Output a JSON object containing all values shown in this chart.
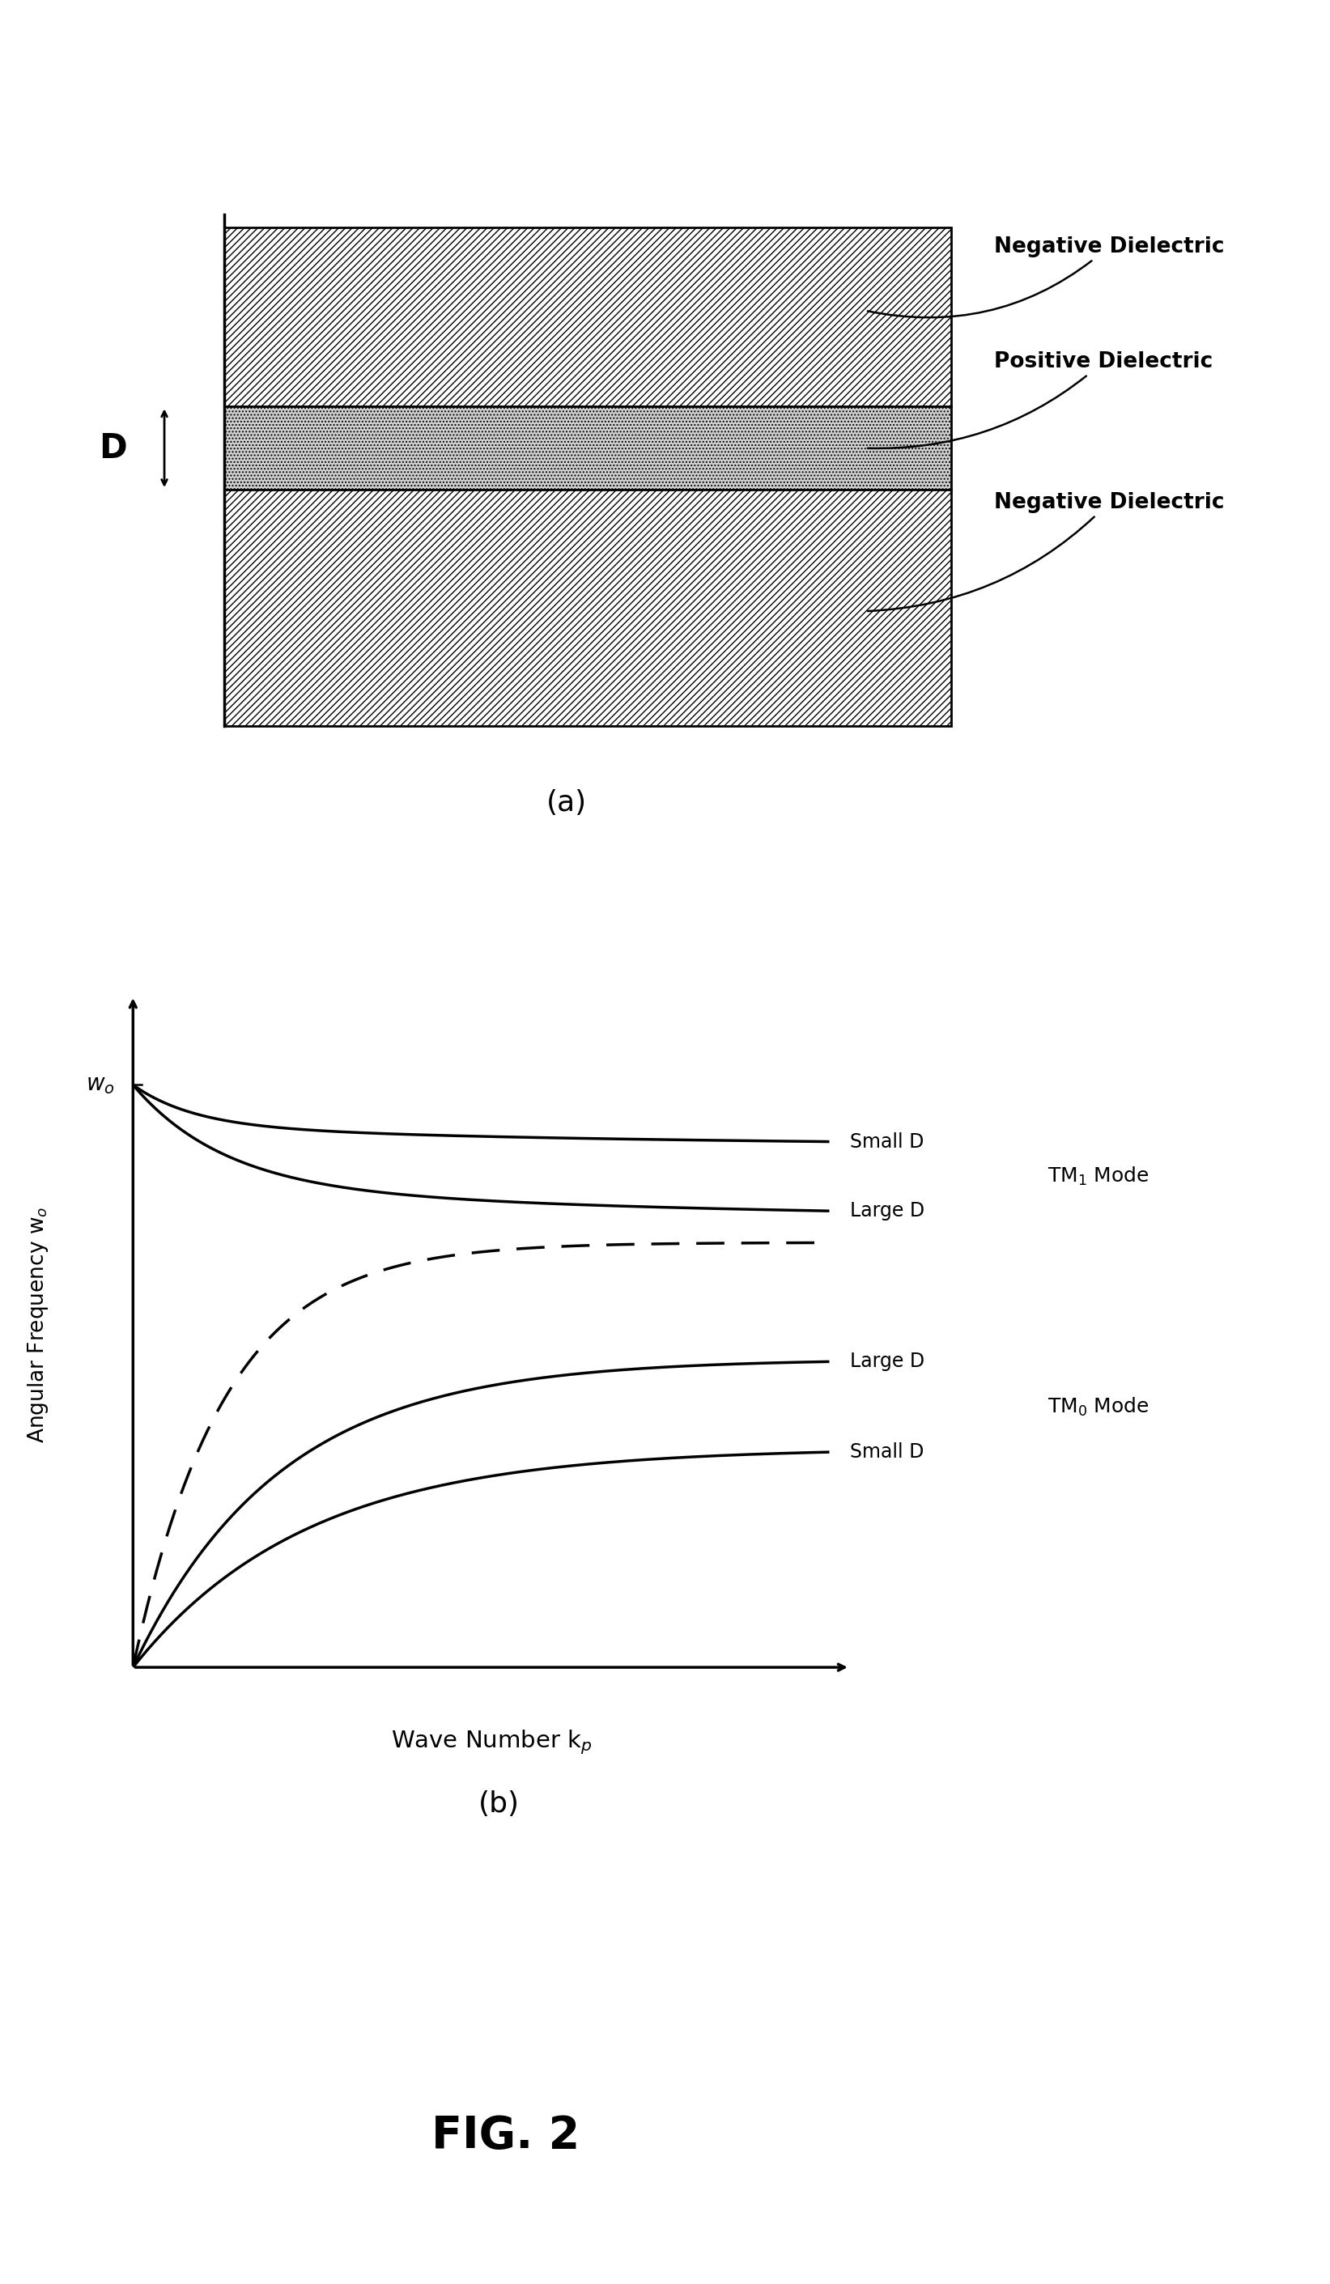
{
  "fig_width": 16.43,
  "fig_height": 28.22,
  "bg_color": "#ffffff",
  "top_panel": {
    "label_a": "(a)",
    "neg_dielectric_label": "Negative Dielectric",
    "pos_dielectric_label": "Positive Dielectric",
    "neg_dielectric_label2": "Negative Dielectric",
    "D_label": "D"
  },
  "bottom_panel": {
    "label_b": "(b)",
    "xlabel": "Wave Number k$_p$",
    "ylabel": "Angular Frequency w$_o$",
    "small_d_tm1": "Small D",
    "large_d_tm1": "Large D",
    "large_d_tm0": "Large D",
    "small_d_tm0": "Small D",
    "tm1_label": "TM$_1$ Mode",
    "tm0_label": "TM$_0$ Mode"
  },
  "fig2_label": "FIG. 2"
}
